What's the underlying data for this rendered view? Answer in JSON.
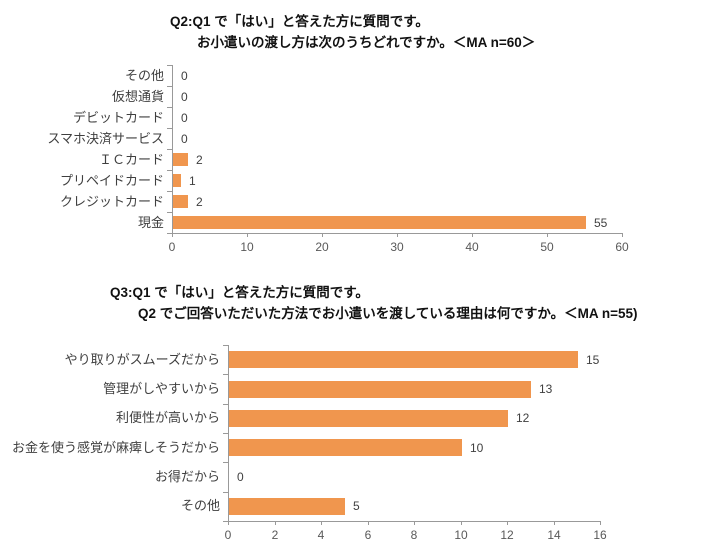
{
  "colors": {
    "bar": "#F0964E",
    "axis_line": "#999999",
    "tick_label": "#595959",
    "category_label": "#3F3F3F",
    "value_label": "#3F3F3F",
    "title": "#111111",
    "background": "#FFFFFF"
  },
  "chart_data": [
    {
      "type": "bar",
      "orientation": "horizontal",
      "title_line1": "Q2:Q1 で「はい」と答えた方に質問です。",
      "title_line2": "お小遣いの渡し方は次のうちどれですか。＜MA n=60＞",
      "categories": [
        "その他",
        "仮想通貨",
        "デビットカード",
        "スマホ決済サービス",
        "ＩＣカード",
        "プリペイドカード",
        "クレジットカード",
        "現金"
      ],
      "values": [
        0,
        0,
        0,
        0,
        2,
        1,
        2,
        55
      ],
      "xlim": [
        0,
        60
      ],
      "xticks": [
        0,
        10,
        20,
        30,
        40,
        50,
        60
      ],
      "grid": false,
      "legend": false,
      "data_labels": true
    },
    {
      "type": "bar",
      "orientation": "horizontal",
      "title_line1": "Q3:Q1 で「はい」と答えた方に質問です。",
      "title_line2": "Q2 でご回答いただいた方法でお小遣いを渡している理由は何ですか。＜MA n=55)",
      "categories": [
        "やり取りがスムーズだから",
        "管理がしやすいから",
        "利便性が高いから",
        "お金を使う感覚が麻痺しそうだから",
        "お得だから",
        "その他"
      ],
      "values": [
        15,
        13,
        12,
        10,
        0,
        5
      ],
      "xlim": [
        0,
        16
      ],
      "xticks": [
        0,
        2,
        4,
        6,
        8,
        10,
        12,
        14,
        16
      ],
      "grid": false,
      "legend": false,
      "data_labels": true
    }
  ]
}
